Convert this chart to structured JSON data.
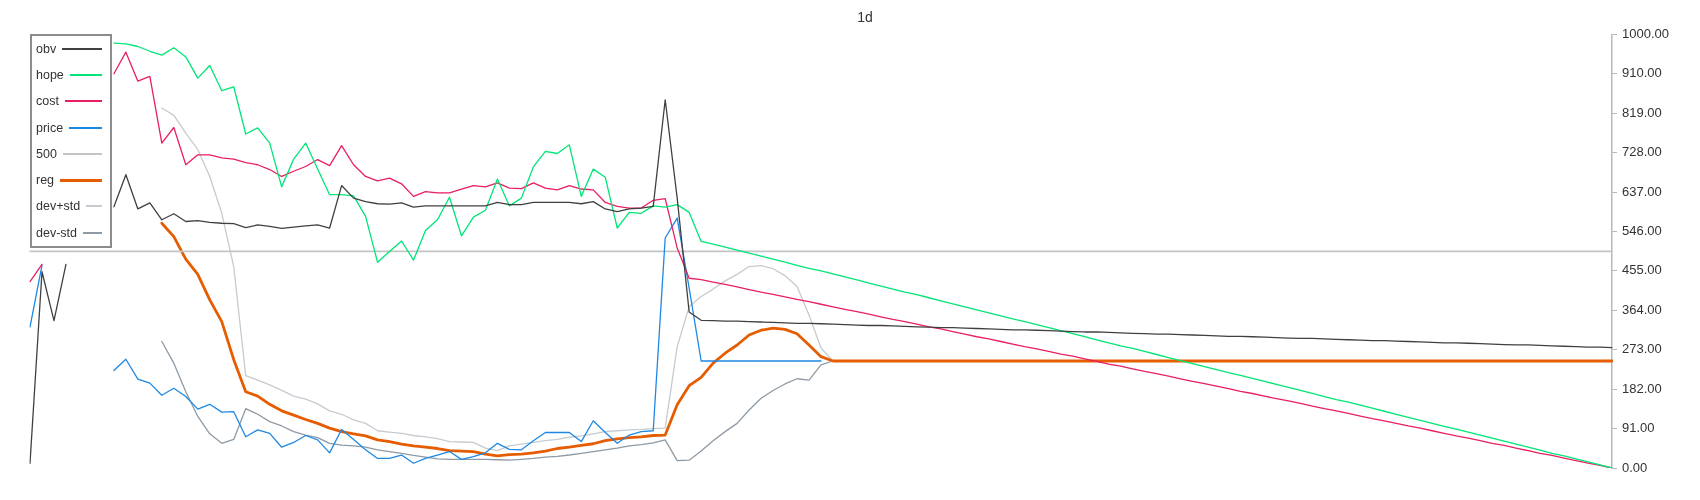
{
  "chart_data": {
    "type": "line",
    "title": "1d",
    "categories": [
      null,
      null,
      null,
      null,
      null,
      null,
      null,
      null,
      null,
      null,
      null,
      null,
      null,
      null,
      null,
      null,
      null,
      null,
      null,
      null,
      null,
      null,
      null,
      null,
      null,
      null,
      null,
      null,
      null,
      null,
      null,
      null,
      null,
      null,
      null,
      null,
      null,
      null,
      null,
      null,
      null,
      null,
      null,
      null,
      null,
      null,
      null,
      null,
      null,
      null,
      null,
      null,
      null,
      null,
      null,
      null,
      null,
      null,
      null,
      null,
      null,
      null,
      null,
      null,
      null,
      null,
      null,
      null,
      null,
      null,
      null,
      null,
      null,
      null,
      null,
      null,
      null,
      null,
      null,
      null,
      null,
      null,
      null,
      null,
      null,
      null,
      null,
      null,
      null,
      null,
      null,
      null,
      null,
      null,
      null,
      null,
      null,
      null,
      null,
      null,
      null,
      null,
      null,
      null,
      null,
      null,
      null,
      null,
      null,
      null,
      null,
      null,
      null,
      null,
      null,
      null,
      null,
      null,
      null,
      null,
      null,
      null,
      null,
      null,
      null,
      null,
      null,
      null,
      null,
      null,
      null,
      null,
      null
    ],
    "series": [
      {
        "name": "obv",
        "color": "#404040",
        "values": [
          11,
          453,
          340,
          470,
          null,
          null,
          null,
          603,
          677,
          598,
          612,
          573,
          587,
          569,
          571,
          567,
          565,
          564,
          555,
          561,
          558,
          553,
          556,
          559,
          561,
          554,
          652,
          623,
          615,
          610,
          609,
          612,
          602,
          605,
          605,
          605,
          605,
          605,
          605,
          613,
          608,
          608,
          613,
          613,
          613,
          613,
          610,
          615,
          598,
          592,
          598,
          600,
          604,
          850,
          623,
          360,
          341,
          340,
          339,
          339,
          338,
          337,
          336,
          335,
          334,
          334,
          333,
          332,
          331,
          330,
          329,
          329,
          328,
          327,
          326,
          325,
          324,
          324,
          323,
          322,
          321,
          320,
          319,
          319,
          318,
          317,
          316,
          315,
          314,
          314,
          313,
          312,
          311,
          310,
          309,
          309,
          308,
          307,
          306,
          305,
          304,
          304,
          303,
          302,
          301,
          300,
          299,
          299,
          298,
          297,
          296,
          295,
          294,
          294,
          293,
          292,
          291,
          290,
          289,
          289,
          288,
          287,
          286,
          285,
          284,
          284,
          283,
          282,
          281,
          280,
          279,
          279,
          278
        ]
      },
      {
        "name": "hope",
        "color": "#00e676",
        "values": [
          null,
          null,
          null,
          null,
          null,
          null,
          null,
          981,
          979,
          973,
          962,
          953,
          970,
          949,
          900,
          929,
          871,
          880,
          771,
          785,
          750,
          649,
          713,
          750,
          690,
          631,
          631,
          628,
          581,
          475,
          500,
          524,
          480,
          548,
          573,
          625,
          536,
          579,
          595,
          667,
          605,
          623,
          695,
          731,
          726,
          746,
          627,
          690,
          671,
          554,
          590,
          588,
          605,
          602,
          608,
          590,
          523,
          517,
          510,
          503,
          496,
          489,
          482,
          475,
          468,
          461,
          455,
          448,
          441,
          434,
          427,
          420,
          413,
          406,
          400,
          393,
          386,
          379,
          372,
          365,
          358,
          351,
          344,
          338,
          331,
          324,
          317,
          310,
          303,
          296,
          289,
          282,
          276,
          269,
          262,
          255,
          248,
          241,
          234,
          227,
          220,
          214,
          207,
          200,
          193,
          186,
          179,
          172,
          165,
          158,
          152,
          145,
          138,
          131,
          124,
          117,
          110,
          103,
          96,
          90,
          83,
          76,
          69,
          62,
          55,
          48,
          41,
          34,
          28,
          21,
          14,
          7,
          0
        ]
      },
      {
        "name": "cost",
        "color": "#e91e63",
        "values": [
          430,
          470,
          null,
          null,
          null,
          null,
          null,
          910,
          960,
          893,
          904,
          750,
          786,
          700,
          723,
          723,
          716,
          713,
          705,
          700,
          689,
          673,
          685,
          696,
          712,
          698,
          744,
          700,
          673,
          663,
          669,
          656,
          627,
          638,
          635,
          635,
          644,
          652,
          649,
          658,
          646,
          645,
          658,
          646,
          642,
          652,
          644,
          642,
          613,
          604,
          600,
          600,
          618,
          622,
          508,
          438,
          435,
          429,
          424,
          418,
          412,
          406,
          401,
          395,
          389,
          384,
          378,
          372,
          366,
          361,
          355,
          349,
          343,
          338,
          332,
          326,
          321,
          315,
          309,
          303,
          298,
          292,
          286,
          280,
          275,
          269,
          263,
          258,
          252,
          246,
          240,
          235,
          229,
          223,
          218,
          212,
          206,
          200,
          195,
          189,
          183,
          177,
          172,
          166,
          160,
          155,
          149,
          143,
          137,
          132,
          126,
          120,
          114,
          109,
          103,
          97,
          92,
          86,
          80,
          74,
          69,
          63,
          57,
          52,
          46,
          40,
          34,
          29,
          23,
          17,
          11,
          6,
          0
        ]
      },
      {
        "name": "price",
        "color": "#1e88e5",
        "values": [
          326,
          468,
          null,
          null,
          null,
          null,
          null,
          225,
          251,
          205,
          196,
          168,
          184,
          165,
          136,
          147,
          129,
          130,
          72,
          88,
          80,
          48,
          59,
          75,
          65,
          35,
          89,
          66,
          42,
          22,
          22,
          30,
          11,
          22,
          30,
          38,
          20,
          26,
          35,
          57,
          43,
          42,
          63,
          82,
          82,
          82,
          61,
          109,
          82,
          57,
          76,
          84,
          86,
          531,
          577,
          415,
          247,
          247,
          247,
          247,
          247,
          247,
          247,
          247,
          247,
          247,
          247,
          null,
          null,
          null,
          null,
          null,
          null,
          null,
          null,
          null,
          null,
          null,
          null,
          null,
          null,
          null,
          null,
          null,
          null,
          null,
          null,
          null,
          null,
          null,
          null,
          null,
          null,
          null,
          null,
          null,
          null,
          null,
          null,
          null,
          null,
          null,
          null,
          null,
          null,
          null,
          null,
          null,
          null,
          null,
          null,
          null,
          null,
          null,
          null,
          null,
          null,
          null,
          null,
          null,
          null,
          null,
          null,
          null,
          null,
          null,
          null,
          null,
          null,
          null,
          null,
          null,
          null
        ]
      },
      {
        "name": "500",
        "color": "#c4c4c4",
        "values": [
          500,
          500,
          500,
          500,
          500,
          500,
          500,
          500,
          500,
          500,
          500,
          500,
          500,
          500,
          500,
          500,
          500,
          500,
          500,
          500,
          500,
          500,
          500,
          500,
          500,
          500,
          500,
          500,
          500,
          500,
          500,
          500,
          500,
          500,
          500,
          500,
          500,
          500,
          500,
          500,
          500,
          500,
          500,
          500,
          500,
          500,
          500,
          500,
          500,
          500,
          500,
          500,
          500,
          500,
          500,
          500,
          500,
          500,
          500,
          500,
          500,
          500,
          500,
          500,
          500,
          500,
          500,
          500,
          500,
          500,
          500,
          500,
          500,
          500,
          500,
          500,
          500,
          500,
          500,
          500,
          500,
          500,
          500,
          500,
          500,
          500,
          500,
          500,
          500,
          500,
          500,
          500,
          500,
          500,
          500,
          500,
          500,
          500,
          500,
          500,
          500,
          500,
          500,
          500,
          500,
          500,
          500,
          500,
          500,
          500,
          500,
          500,
          500,
          500,
          500,
          500,
          500,
          500,
          500,
          500,
          500,
          500,
          500,
          500,
          500,
          500,
          500,
          500,
          500,
          500,
          500,
          500,
          500
        ]
      },
      {
        "name": "reg",
        "color": "#e65c00",
        "values": [
          null,
          null,
          null,
          null,
          null,
          null,
          null,
          null,
          null,
          null,
          null,
          565,
          534,
          482,
          447,
          388,
          338,
          250,
          176,
          166,
          147,
          132,
          122,
          112,
          103,
          92,
          84,
          79,
          74,
          65,
          61,
          55,
          51,
          48,
          45,
          40,
          39,
          38,
          32,
          28,
          31,
          32,
          35,
          39,
          45,
          48,
          52,
          56,
          63,
          67,
          70,
          72,
          75,
          76,
          146,
          190,
          209,
          242,
          265,
          284,
          307,
          318,
          323,
          320,
          310,
          284,
          257,
          247,
          247,
          247,
          247,
          247,
          247,
          247,
          247,
          247,
          247,
          247,
          247,
          247,
          247,
          247,
          247,
          247,
          247,
          247,
          247,
          247,
          247,
          247,
          247,
          247,
          247,
          247,
          247,
          247,
          247,
          247,
          247,
          247,
          247,
          247,
          247,
          247,
          247,
          247,
          247,
          247,
          247,
          247,
          247,
          247,
          247,
          247,
          247,
          247,
          247,
          247,
          247,
          247,
          247,
          247,
          247,
          247,
          247,
          247,
          247,
          247,
          247,
          247,
          247,
          247,
          247
        ]
      },
      {
        "name": "dev+std",
        "color": "#c5cbd0",
        "values": [
          null,
          null,
          null,
          null,
          null,
          null,
          null,
          null,
          null,
          null,
          null,
          831,
          814,
          773,
          735,
          673,
          588,
          465,
          213,
          203,
          192,
          179,
          166,
          159,
          148,
          132,
          124,
          111,
          103,
          86,
          83,
          80,
          75,
          72,
          68,
          61,
          60,
          59,
          46,
          40,
          51,
          55,
          59,
          63,
          66,
          71,
          74,
          79,
          84,
          86,
          88,
          89,
          91,
          92,
          280,
          373,
          396,
          413,
          432,
          447,
          465,
          467,
          460,
          444,
          419,
          353,
          277,
          247,
          null,
          null,
          null,
          null,
          null,
          null,
          null,
          null,
          null,
          null,
          null,
          null,
          null,
          null,
          null,
          null,
          null,
          null,
          null,
          null,
          null,
          null,
          null,
          null,
          null,
          null,
          null,
          null,
          null,
          null,
          null,
          null,
          null,
          null,
          null,
          null,
          null,
          null,
          null,
          null,
          null,
          null,
          null,
          null,
          null,
          null,
          null,
          null,
          null,
          null,
          null,
          null,
          null,
          null,
          null,
          null,
          null,
          null,
          null,
          null,
          null,
          null,
          null,
          null,
          null
        ]
      },
      {
        "name": "dev-std",
        "color": "#8e9aa5",
        "values": [
          null,
          null,
          null,
          null,
          null,
          null,
          null,
          null,
          null,
          null,
          null,
          292,
          242,
          176,
          119,
          79,
          57,
          66,
          137,
          124,
          107,
          97,
          84,
          76,
          70,
          57,
          53,
          51,
          48,
          42,
          38,
          34,
          29,
          25,
          21,
          20,
          20,
          20,
          20,
          19,
          18,
          20,
          22,
          25,
          27,
          30,
          34,
          38,
          42,
          46,
          51,
          54,
          58,
          65,
          17,
          18,
          39,
          63,
          84,
          103,
          134,
          161,
          179,
          194,
          206,
          203,
          238,
          247,
          null,
          null,
          null,
          null,
          null,
          null,
          null,
          null,
          null,
          null,
          null,
          null,
          null,
          null,
          null,
          null,
          null,
          null,
          null,
          null,
          null,
          null,
          null,
          null,
          null,
          null,
          null,
          null,
          null,
          null,
          null,
          null,
          null,
          null,
          null,
          null,
          null,
          null,
          null,
          null,
          null,
          null,
          null,
          null,
          null,
          null,
          null,
          null,
          null,
          null,
          null,
          null,
          null,
          null,
          null,
          null,
          null,
          null,
          null,
          null,
          null,
          null,
          null,
          null,
          null
        ]
      }
    ],
    "ylim": [
      0,
      1000
    ],
    "yticks": [
      {
        "value": 0,
        "label": "0.00"
      },
      {
        "value": 91,
        "label": "91.00"
      },
      {
        "value": 182,
        "label": "182.00"
      },
      {
        "value": 273,
        "label": "273.00"
      },
      {
        "value": 364,
        "label": "364.00"
      },
      {
        "value": 455,
        "label": "455.00"
      },
      {
        "value": 546,
        "label": "546.00"
      },
      {
        "value": 637,
        "label": "637.00"
      },
      {
        "value": 728,
        "label": "728.00"
      },
      {
        "value": 819,
        "label": "819.00"
      },
      {
        "value": 910,
        "label": "910.00"
      },
      {
        "value": 1000,
        "label": "1000.00"
      }
    ],
    "legend": "top left",
    "marker": "none",
    "line_style": "solid",
    "tick_labels": "y"
  }
}
